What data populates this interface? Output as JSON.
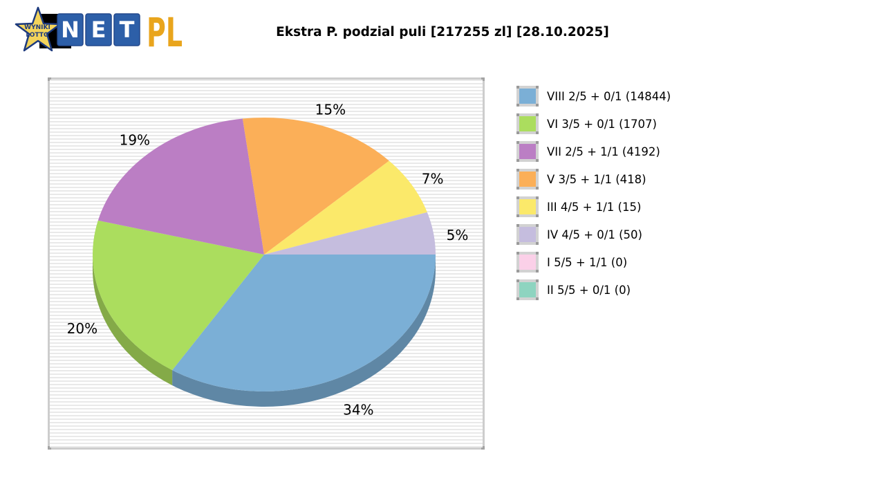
{
  "logo": {
    "star_text_line1": "WYNIKI",
    "star_text_line2": "LOTTO",
    "net_letters": [
      "N",
      "E",
      "T"
    ],
    "suffix": "PL",
    "colors": {
      "star_yellow": "#f3d45b",
      "navy": "#1d3a7d",
      "box_blue": "#2d5fa8",
      "box_border": "#24488c",
      "gold": "#e9a51d",
      "backdrop": "#000000"
    }
  },
  "header": {
    "title": "Ekstra P. podzial puli [217255 zl] [28.10.2025]"
  },
  "chart_data": {
    "type": "pie",
    "style": "pie3d",
    "title": "Ekstra P. podzial puli [217255 zl] [28.10.2025]",
    "pool_total_label": "217255 zl",
    "date_label": "28.10.2025",
    "start_angle_deg": 0,
    "direction": "clockwise",
    "label_format": "{percent}%",
    "legend_position": "right",
    "plot_bg_stripes": [
      "#e9e9e9",
      "#ffffff"
    ],
    "slices": [
      {
        "label": "VIII 2/5 + 0/1",
        "count": 14844,
        "percent": 34,
        "color": "#7bafd6"
      },
      {
        "label": "VI 3/5 + 0/1",
        "count": 1707,
        "percent": 20,
        "color": "#abdd5e"
      },
      {
        "label": "VII 2/5 + 1/1",
        "count": 4192,
        "percent": 19,
        "color": "#bb7ec4"
      },
      {
        "label": "V 3/5 + 1/1",
        "count": 418,
        "percent": 15,
        "color": "#fbaf58"
      },
      {
        "label": "III 4/5 + 1/1",
        "count": 15,
        "percent": 7,
        "color": "#fbe96a"
      },
      {
        "label": "IV 4/5 + 0/1",
        "count": 50,
        "percent": 5,
        "color": "#c5bdde"
      },
      {
        "label": "I 5/5 + 1/1",
        "count": 0,
        "percent": 0,
        "color": "#fbd0e8"
      },
      {
        "label": "II 5/5 + 0/1",
        "count": 0,
        "percent": 0,
        "color": "#8ed4c0"
      }
    ]
  },
  "legend": {
    "labels": [
      "VIII 2/5 + 0/1 (14844)",
      "VI 3/5 + 0/1 (1707)",
      "VII 2/5 + 1/1 (4192)",
      "V 3/5 + 1/1 (418)",
      "III 4/5 + 1/1 (15)",
      "IV 4/5 + 0/1 (50)",
      "I 5/5 + 1/1 (0)",
      "II 5/5 + 0/1 (0)"
    ]
  }
}
